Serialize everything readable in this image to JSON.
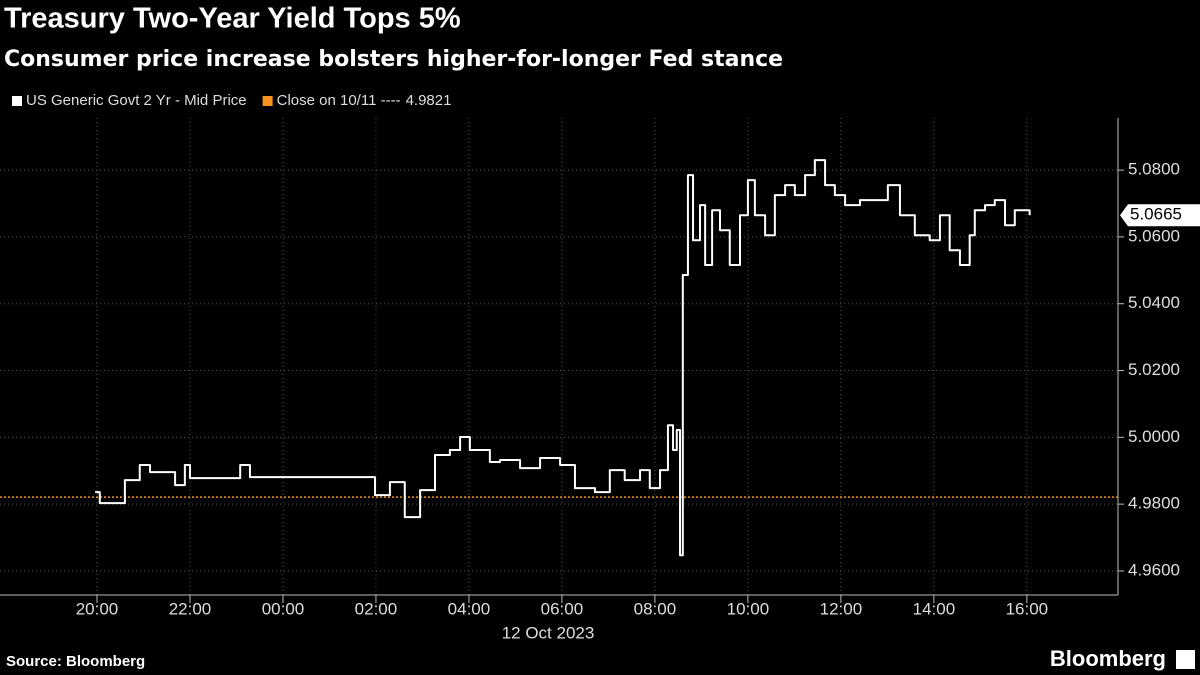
{
  "chart_data": {
    "type": "line",
    "title": "Treasury Two-Year Yield Tops 5%",
    "subtitle": "Consumer price increase bolsters higher-for-longer Fed stance",
    "xlabel": "12 Oct 2023",
    "source": "Source: Bloomberg",
    "brand": "Bloomberg",
    "x": [
      -0.04,
      0.06,
      0.49,
      0.6,
      0.82,
      0.92,
      1.14,
      1.57,
      1.68,
      1.89,
      2.0,
      2.86,
      3.08,
      3.29,
      5.87,
      5.98,
      6.3,
      6.62,
      6.95,
      7.27,
      7.59,
      7.81,
      8.02,
      8.24,
      8.45,
      8.67,
      9.1,
      9.53,
      9.96,
      10.28,
      10.71,
      11.03,
      11.35,
      11.68,
      11.89,
      12.11,
      12.28,
      12.39,
      12.47,
      12.54,
      12.6,
      12.71,
      12.82,
      12.97,
      13.08,
      13.23,
      13.4,
      13.61,
      13.83,
      14.0,
      14.15,
      14.37,
      14.58,
      14.8,
      15.01,
      15.23,
      15.44,
      15.66,
      15.87,
      16.09,
      16.41,
      16.84,
      17.01,
      17.27,
      17.59,
      17.91,
      18.13,
      18.34,
      18.56,
      18.77,
      18.88,
      19.1,
      19.31,
      19.53,
      19.74,
      20.06
    ],
    "series": [
      {
        "name": "US Generic Govt 2 Yr - Mid Price",
        "color": "#ffffff",
        "values": [
          4.9836,
          4.9803,
          4.9803,
          4.9872,
          4.9872,
          4.9917,
          4.9896,
          4.9896,
          4.9857,
          4.9917,
          4.9878,
          4.9878,
          4.9917,
          4.9881,
          4.9881,
          4.9827,
          4.9866,
          4.9761,
          4.9842,
          4.9947,
          4.9962,
          5.0001,
          4.9962,
          4.9962,
          4.9926,
          4.9932,
          4.9908,
          4.9938,
          4.9917,
          4.9848,
          4.9836,
          4.9902,
          4.9872,
          4.9902,
          4.9848,
          4.9902,
          5.0036,
          4.9962,
          5.0022,
          4.9647,
          5.0486,
          5.0785,
          5.059,
          5.0695,
          5.0516,
          5.068,
          5.062,
          5.0516,
          5.0665,
          5.077,
          5.0665,
          5.0605,
          5.0725,
          5.0755,
          5.0725,
          5.0785,
          5.083,
          5.0755,
          5.0725,
          5.0695,
          5.071,
          5.071,
          5.0755,
          5.0665,
          5.0605,
          5.059,
          5.0665,
          5.056,
          5.0516,
          5.0605,
          5.068,
          5.0695,
          5.071,
          5.0635,
          5.068,
          5.0665
        ]
      }
    ],
    "reference_line": {
      "name": "Close on 10/11 ----",
      "value": 4.9821,
      "color": "#f7931e"
    },
    "xlim": [
      -2.086,
      21.96
    ],
    "xticks": [
      {
        "value": 0,
        "label": "20:00"
      },
      {
        "value": 2,
        "label": "22:00"
      },
      {
        "value": 4,
        "label": "00:00"
      },
      {
        "value": 6,
        "label": "02:00"
      },
      {
        "value": 8,
        "label": "04:00"
      },
      {
        "value": 10,
        "label": "06:00"
      },
      {
        "value": 12,
        "label": "08:00"
      },
      {
        "value": 14,
        "label": "10:00"
      },
      {
        "value": 16,
        "label": "12:00"
      },
      {
        "value": 18,
        "label": "14:00"
      },
      {
        "value": 20,
        "label": "16:00"
      }
    ],
    "ylim": [
      4.9528,
      5.0956
    ],
    "yticks": [
      {
        "value": 4.96,
        "label": "4.9600"
      },
      {
        "value": 4.98,
        "label": "4.9800"
      },
      {
        "value": 5.0,
        "label": "5.0000"
      },
      {
        "value": 5.02,
        "label": "5.0200"
      },
      {
        "value": 5.04,
        "label": "5.0400"
      },
      {
        "value": 5.06,
        "label": "5.0600"
      },
      {
        "value": 5.08,
        "label": "5.0800"
      }
    ],
    "grid": true,
    "step": true
  }
}
